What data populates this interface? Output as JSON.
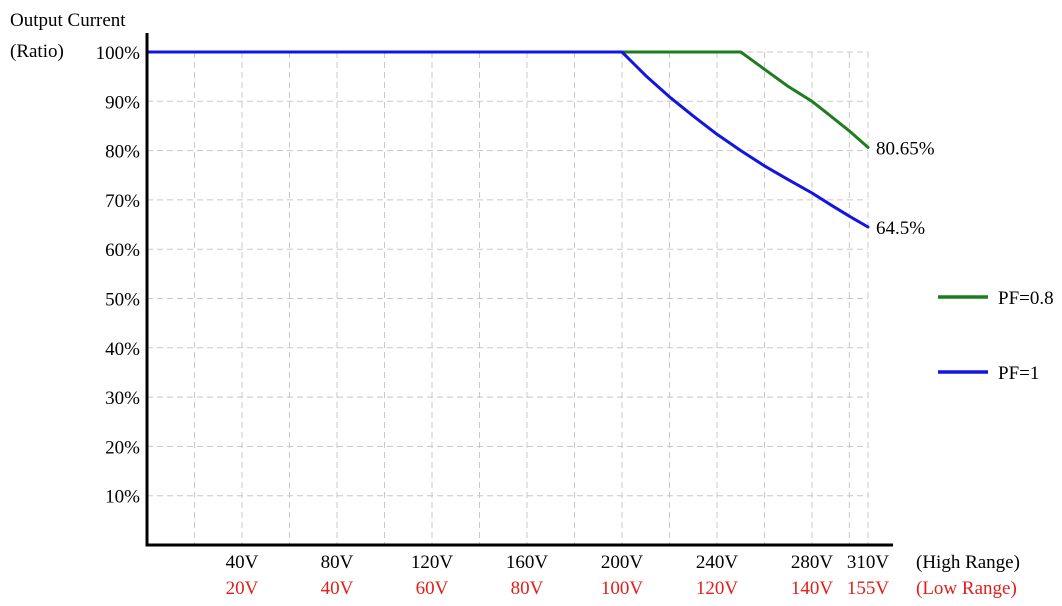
{
  "chart_data": {
    "type": "line",
    "ylabel": [
      "Output Current",
      "(Ratio)"
    ],
    "ylim": [
      0,
      100
    ],
    "yticks": [
      "10%",
      "20%",
      "30%",
      "40%",
      "50%",
      "60%",
      "70%",
      "80%",
      "90%",
      "100%"
    ],
    "ytick_values": [
      10,
      20,
      30,
      40,
      50,
      60,
      70,
      80,
      90,
      100
    ],
    "xlim": [
      0,
      310
    ],
    "x_axis_high": {
      "label": "(High Range)",
      "ticks": [
        "40V",
        "80V",
        "120V",
        "160V",
        "200V",
        "240V",
        "280V",
        "310V"
      ],
      "tick_values": [
        40,
        80,
        120,
        160,
        200,
        240,
        280,
        310
      ]
    },
    "x_axis_low": {
      "label": "(Low Range)",
      "ticks": [
        "20V",
        "40V",
        "60V",
        "80V",
        "100V",
        "120V",
        "140V",
        "155V"
      ],
      "color": "#e0201b"
    },
    "grid": true,
    "legend_position": "right",
    "series": [
      {
        "name": "PF=0.8",
        "color": "#1e7d1e",
        "end_label": "80.65%",
        "x": [
          0,
          200,
          250,
          260,
          270,
          280,
          290,
          300,
          310
        ],
        "y": [
          100,
          100,
          100,
          96.5,
          93,
          90,
          87,
          84,
          80.65
        ]
      },
      {
        "name": "PF=1",
        "color": "#1414e0",
        "end_label": "64.5%",
        "x": [
          0,
          200,
          210,
          220,
          230,
          240,
          250,
          260,
          270,
          280,
          290,
          300,
          310
        ],
        "y": [
          100,
          100,
          95.2,
          90.9,
          87.0,
          83.3,
          80.0,
          76.9,
          74.1,
          71.4,
          69.0,
          66.7,
          64.5
        ]
      }
    ]
  }
}
